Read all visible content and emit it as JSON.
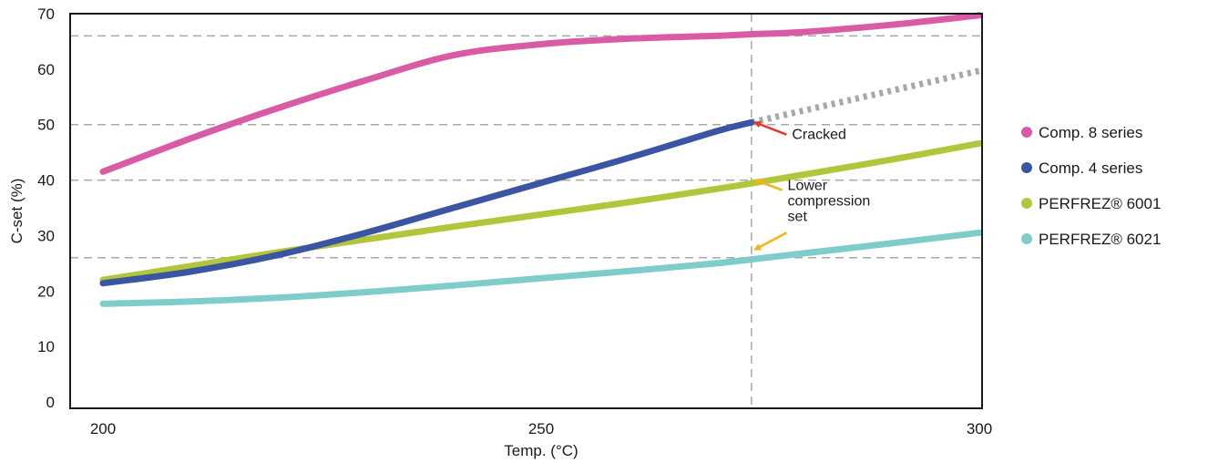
{
  "chart_data": {
    "type": "line",
    "xlabel": "Temp. (°C)",
    "ylabel": "C-set (%)",
    "xlim": [
      200,
      300
    ],
    "ylim": [
      0,
      70
    ],
    "x_ticks": [
      "200",
      "250",
      "300"
    ],
    "y_ticks": [
      "0",
      "10",
      "20",
      "30",
      "40",
      "50",
      "60",
      "70"
    ],
    "grid": "dashed reference lines at about 26, 40, 50 and 66 % and at about 274 °C",
    "series": [
      {
        "name": "Comp. 8 series",
        "color": "#d95aa5",
        "x": [
          200,
          210,
          220,
          230,
          240,
          250,
          260,
          270,
          274,
          280,
          290,
          300
        ],
        "y": [
          41.5,
          47.5,
          53,
          58,
          62.5,
          64.5,
          65.5,
          66,
          66.3,
          66.7,
          68,
          69.7
        ]
      },
      {
        "name": "Comp. 4 series",
        "color": "#3a55a1",
        "x": [
          200,
          210,
          220,
          230,
          240,
          250,
          260,
          270,
          274
        ],
        "y": [
          21.4,
          23.5,
          26.5,
          30.5,
          35,
          39.5,
          44,
          48.8,
          50.4
        ]
      },
      {
        "name": "PERFREZ® 6001",
        "color": "#b3c53a",
        "x": [
          200,
          210,
          220,
          230,
          240,
          250,
          260,
          270,
          274,
          280,
          290,
          300
        ],
        "y": [
          22,
          24.5,
          27,
          29.3,
          31.6,
          33.8,
          36,
          38.4,
          39.4,
          41,
          43.7,
          46.6
        ]
      },
      {
        "name": "PERFREZ® 6021",
        "color": "#7ecdcb",
        "x": [
          200,
          210,
          220,
          230,
          240,
          250,
          260,
          270,
          274,
          280,
          290,
          300
        ],
        "y": [
          17.7,
          18.1,
          18.8,
          19.8,
          21,
          22.3,
          23.6,
          25,
          25.7,
          26.8,
          28.6,
          30.5
        ]
      }
    ],
    "extrapolation": {
      "color": "#a8a8a8",
      "style": "dotted",
      "x": [
        274,
        300
      ],
      "y": [
        50.4,
        59.7
      ]
    },
    "annotations": [
      {
        "lines": [
          "Cracked"
        ],
        "arrow_color": "#e03a30",
        "at": [
          274,
          50.4
        ],
        "from": [
          278,
          48.2
        ]
      },
      {
        "lines": [
          "Lower",
          "compression",
          "set"
        ],
        "arrow_color": "#f2b517",
        "at": [
          274,
          40
        ],
        "from": [
          277.5,
          38.2
        ]
      },
      {
        "lines": [],
        "arrow_color": "#f2b517",
        "at": [
          274,
          27.5
        ],
        "from": [
          278,
          30.5
        ]
      }
    ],
    "legend_position": "right"
  }
}
